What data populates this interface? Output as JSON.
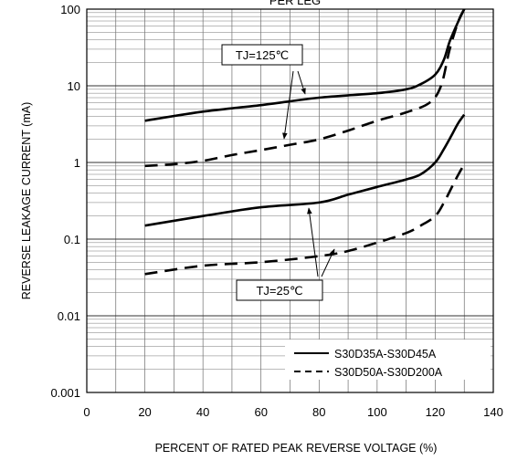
{
  "chart_data": {
    "type": "line",
    "title": "PER LEG",
    "xlabel": "PERCENT OF RATED PEAK REVERSE VOLTAGE (%)",
    "ylabel": "REVERSE LEAKAGE CURRENT (mA)",
    "xlim": [
      0,
      140
    ],
    "ylim": [
      0.001,
      100
    ],
    "yscale": "log",
    "grid": true,
    "x_ticks": [
      "0",
      "20",
      "40",
      "60",
      "80",
      "100",
      "120",
      "140"
    ],
    "y_ticks": [
      "0.001",
      "0.01",
      "0.1",
      "1",
      "10",
      "100"
    ],
    "legend": {
      "placement": "bottom-right",
      "entries": [
        "S30D35A-S30D45A",
        "S30D50A-S30D200A"
      ]
    },
    "annotations": [
      "TJ=125℃",
      "TJ=25℃"
    ],
    "series": [
      {
        "group": "S30D35A-S30D45A",
        "condition": "TJ=125℃",
        "style": "solid",
        "x": [
          20,
          40,
          60,
          80,
          100,
          110,
          115,
          120,
          123,
          125,
          128,
          130
        ],
        "y": [
          3.5,
          4.6,
          5.6,
          7.0,
          8.0,
          9.0,
          10.5,
          14,
          22,
          38,
          70,
          100
        ]
      },
      {
        "group": "S30D50A-S30D200A",
        "condition": "TJ=125℃",
        "style": "dashed",
        "x": [
          20,
          30,
          40,
          50,
          60,
          70,
          80,
          90,
          100,
          110,
          118,
          122,
          125,
          128,
          130
        ],
        "y": [
          0.9,
          0.95,
          1.05,
          1.25,
          1.45,
          1.7,
          2.0,
          2.6,
          3.5,
          4.5,
          6.0,
          10,
          30,
          70,
          100
        ]
      },
      {
        "group": "S30D35A-S30D45A",
        "condition": "TJ=25℃",
        "style": "solid",
        "x": [
          20,
          40,
          60,
          80,
          90,
          100,
          110,
          115,
          120,
          123,
          126,
          128,
          130
        ],
        "y": [
          0.15,
          0.2,
          0.26,
          0.3,
          0.38,
          0.48,
          0.6,
          0.7,
          1.0,
          1.5,
          2.4,
          3.3,
          4.2
        ]
      },
      {
        "group": "S30D50A-S30D200A",
        "condition": "TJ=25℃",
        "style": "dashed",
        "x": [
          20,
          40,
          60,
          80,
          90,
          100,
          110,
          115,
          120,
          123,
          126,
          128,
          130
        ],
        "y": [
          0.035,
          0.045,
          0.05,
          0.06,
          0.07,
          0.09,
          0.12,
          0.15,
          0.2,
          0.3,
          0.5,
          0.7,
          0.95
        ]
      }
    ]
  }
}
